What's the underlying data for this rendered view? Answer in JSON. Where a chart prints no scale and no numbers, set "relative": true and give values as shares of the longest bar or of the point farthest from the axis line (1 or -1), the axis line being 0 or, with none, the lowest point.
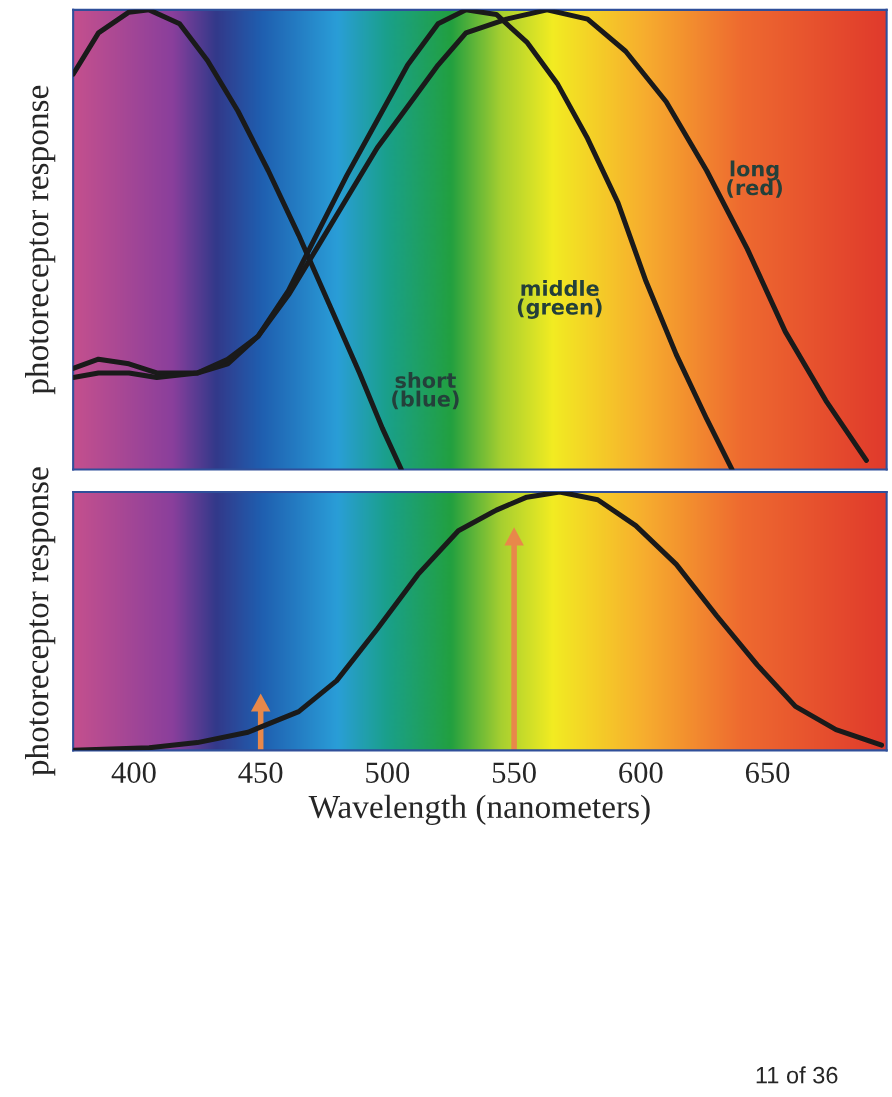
{
  "chart_data": [
    {
      "type": "line",
      "relative": true,
      "ylabel": "photoreceptor response",
      "xlim": [
        376,
        697
      ],
      "tick_labels": false,
      "series": [
        {
          "name": "short (blue)",
          "color": "#1a1a1a",
          "x": [
            376,
            386,
            398,
            406,
            418,
            429,
            441,
            453,
            465,
            477,
            489,
            498,
            505.5
          ],
          "values": [
            0.86,
            0.95,
            0.995,
            1,
            0.97,
            0.89,
            0.78,
            0.65,
            0.51,
            0.36,
            0.21,
            0.09,
            0
          ]
        },
        {
          "name": "middle (green)",
          "color": "#1a1a1a",
          "x": [
            376,
            386,
            398,
            409,
            425,
            437,
            449,
            461,
            472,
            484,
            496,
            508,
            520,
            531,
            543,
            555,
            567,
            579,
            591,
            602,
            614,
            626,
            636
          ],
          "values": [
            0.22,
            0.24,
            0.23,
            0.21,
            0.21,
            0.23,
            0.29,
            0.39,
            0.51,
            0.64,
            0.76,
            0.88,
            0.97,
            1,
            0.99,
            0.93,
            0.84,
            0.72,
            0.58,
            0.41,
            0.25,
            0.11,
            0
          ]
        },
        {
          "name": "long (red)",
          "color": "#1a1a1a",
          "x": [
            376,
            386,
            398,
            409,
            425,
            437,
            449,
            461,
            472,
            484,
            496,
            508,
            520,
            531,
            547,
            563,
            579,
            594,
            610,
            626,
            642,
            657,
            673,
            689
          ],
          "values": [
            0.2,
            0.21,
            0.21,
            0.2,
            0.21,
            0.24,
            0.29,
            0.38,
            0.48,
            0.59,
            0.7,
            0.79,
            0.88,
            0.95,
            0.98,
            1,
            0.98,
            0.91,
            0.8,
            0.65,
            0.48,
            0.3,
            0.15,
            0.02
          ]
        }
      ]
    },
    {
      "type": "line",
      "relative": true,
      "ylabel": "photoreceptor response",
      "xlabel": "Wavelength (nanometers)",
      "xlim": [
        376,
        697
      ],
      "xticks": [
        400,
        450,
        500,
        550,
        600,
        650
      ],
      "tick_labels": "x",
      "series": [
        {
          "color": "#1a1a1a",
          "x": [
            376,
            406,
            425,
            445,
            465,
            480,
            496,
            512,
            528,
            543,
            555,
            568,
            583,
            598,
            614,
            630,
            646,
            661,
            677,
            695
          ],
          "values": [
            0,
            0.01,
            0.03,
            0.07,
            0.15,
            0.27,
            0.47,
            0.68,
            0.85,
            0.93,
            0.98,
            1,
            0.97,
            0.87,
            0.72,
            0.52,
            0.33,
            0.17,
            0.08,
            0.02
          ]
        }
      ],
      "ref_lines": [
        {
          "axis": "x",
          "value": 550,
          "color": "#e8884a"
        },
        {
          "axis": "x",
          "value": 450,
          "color": "#e8884a"
        }
      ],
      "annotations": [
        "11 of 36"
      ]
    }
  ]
}
